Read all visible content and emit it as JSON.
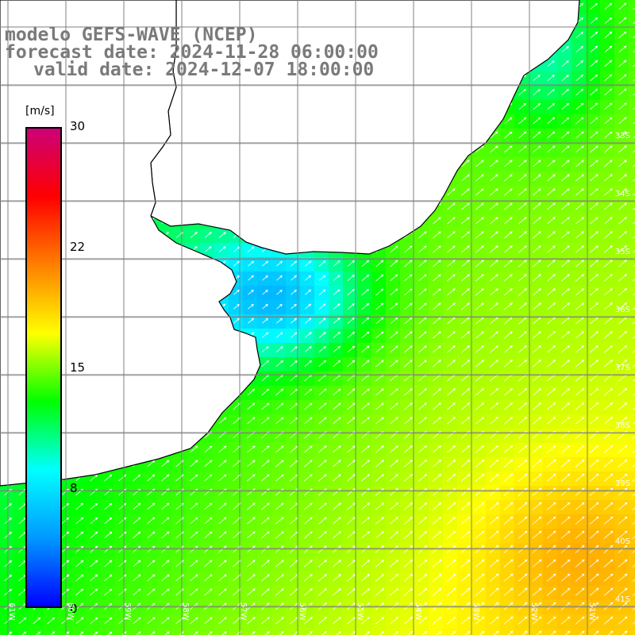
{
  "title": {
    "line1": "modelo GEFS-WAVE (NCEP)",
    "line2": "forecast date: 2024-11-28 06:00:00",
    "line3": "valid date: 2024-12-07 18:00:00"
  },
  "colorbar": {
    "unit": "[m/s]",
    "ticks": [
      "30",
      "22",
      "15",
      "8",
      "0"
    ],
    "range": [
      0,
      30
    ],
    "colors": [
      "#0000ff",
      "#0099ff",
      "#00ffff",
      "#00ff00",
      "#ffff00",
      "#ff8000",
      "#ff0000",
      "#cc0077"
    ]
  },
  "lat_labels": [
    "33S",
    "34S",
    "35S",
    "36S",
    "37S",
    "38S",
    "39S",
    "40S",
    "41S"
  ],
  "lon_labels": [
    "61W",
    "60W",
    "59W",
    "58W",
    "57W",
    "56W",
    "55W",
    "54W",
    "53W",
    "52W",
    "51W"
  ],
  "field": {
    "description_units": "m/s",
    "wind_direction": "southwest to northeast",
    "colors": {
      "land": "#ffffff",
      "coast": "#000000",
      "grid": "#808080",
      "arrow": "#ffffff"
    }
  }
}
